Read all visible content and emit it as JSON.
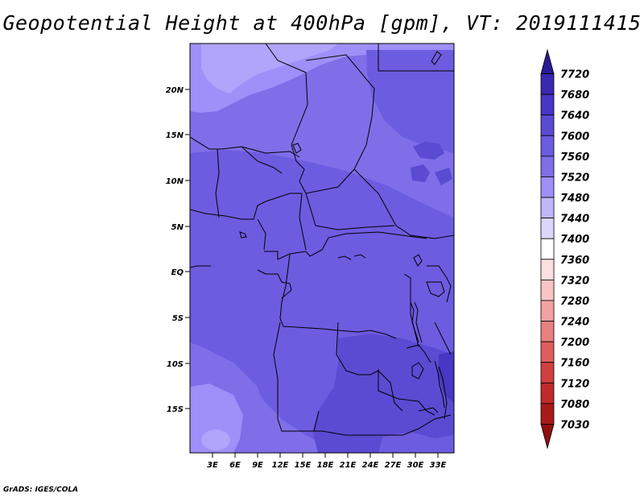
{
  "title": "Geopotential Height at 400hPa [gpm], VT: 2019111415",
  "footer": "GrADS: IGES/COLA",
  "map": {
    "lat_labels": [
      "20N",
      "15N",
      "10N",
      "5N",
      "EQ",
      "5S",
      "10S",
      "15S"
    ],
    "lon_labels": [
      "3E",
      "6E",
      "9E",
      "12E",
      "15E",
      "18E",
      "21E",
      "24E",
      "27E",
      "30E",
      "33E"
    ],
    "field_colors": {
      "c7480": "#9e8ff9",
      "c7520": "#7f6ee8",
      "c7560": "#6c5ce0",
      "c7600": "#5a4bd2",
      "c7640": "#4737c4"
    }
  },
  "colorbar": {
    "levels": [
      "7720",
      "7680",
      "7640",
      "7600",
      "7560",
      "7520",
      "7480",
      "7440",
      "7400",
      "7360",
      "7320",
      "7280",
      "7240",
      "7200",
      "7160",
      "7120",
      "7080",
      "7030"
    ],
    "colors": [
      "#2b1a94",
      "#3a29b0",
      "#4737c4",
      "#5a4bd2",
      "#6c5ce0",
      "#7f6ee8",
      "#9e8ff9",
      "#c0b6fb",
      "#dcd6fc",
      "#ffffff",
      "#fde0e0",
      "#f9c4c4",
      "#f2a2a2",
      "#e98080",
      "#de5e5e",
      "#d04040",
      "#c02a2a",
      "#a81a1a",
      "#8e1010"
    ]
  }
}
